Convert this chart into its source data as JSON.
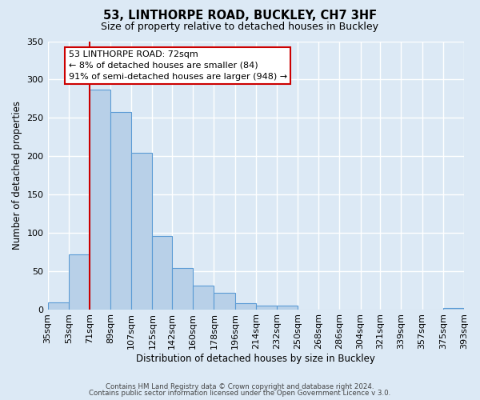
{
  "title": "53, LINTHORPE ROAD, BUCKLEY, CH7 3HF",
  "subtitle": "Size of property relative to detached houses in Buckley",
  "xlabel": "Distribution of detached houses by size in Buckley",
  "ylabel": "Number of detached properties",
  "bar_color": "#b8d0e8",
  "bar_edge_color": "#5b9bd5",
  "background_color": "#dce9f5",
  "grid_color": "#ffffff",
  "bins": [
    35,
    53,
    71,
    89,
    107,
    125,
    142,
    160,
    178,
    196,
    214,
    232,
    250,
    268,
    286,
    304,
    321,
    339,
    357,
    375,
    393
  ],
  "bin_labels": [
    "35sqm",
    "53sqm",
    "71sqm",
    "89sqm",
    "107sqm",
    "125sqm",
    "142sqm",
    "160sqm",
    "178sqm",
    "196sqm",
    "214sqm",
    "232sqm",
    "250sqm",
    "268sqm",
    "286sqm",
    "304sqm",
    "321sqm",
    "339sqm",
    "357sqm",
    "375sqm",
    "393sqm"
  ],
  "heights": [
    9,
    72,
    287,
    258,
    204,
    96,
    54,
    31,
    21,
    8,
    5,
    5,
    0,
    0,
    0,
    0,
    0,
    0,
    0,
    2
  ],
  "ylim": [
    0,
    350
  ],
  "yticks": [
    0,
    50,
    100,
    150,
    200,
    250,
    300,
    350
  ],
  "red_line_x": 71,
  "annotation_title": "53 LINTHORPE ROAD: 72sqm",
  "annotation_line1": "← 8% of detached houses are smaller (84)",
  "annotation_line2": "91% of semi-detached houses are larger (948) →",
  "annotation_box_color": "#ffffff",
  "annotation_border_color": "#cc0000",
  "red_line_color": "#cc0000",
  "footer1": "Contains HM Land Registry data © Crown copyright and database right 2024.",
  "footer2": "Contains public sector information licensed under the Open Government Licence v 3.0."
}
